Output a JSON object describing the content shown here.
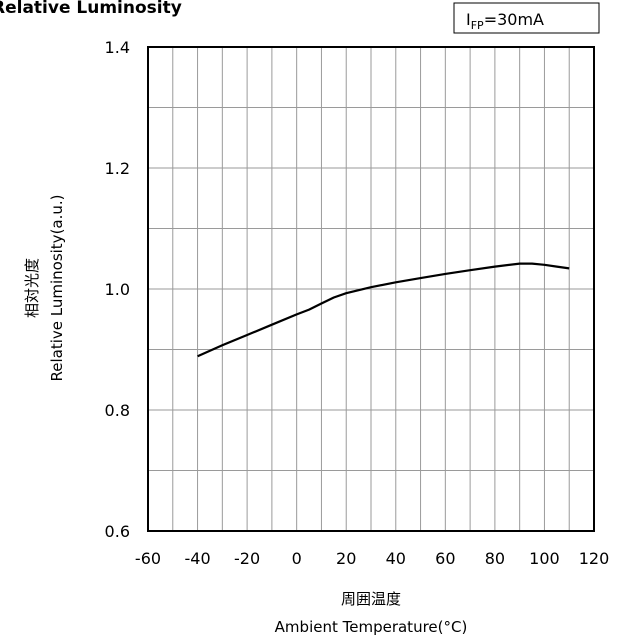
{
  "chart_data": {
    "type": "line",
    "title": "Relative Luminosity",
    "condition_label": {
      "main": "I",
      "subscript": "FP",
      "rest": "=30mA"
    },
    "xlabel_cn": "周囲温度",
    "xlabel": "Ambient Temperature(°C)",
    "ylabel_cn": "相対光度",
    "ylabel": "Relative Luminosity(a.u.)",
    "xlim": [
      -60,
      120
    ],
    "ylim": [
      0.6,
      1.4
    ],
    "x_ticks": [
      -60,
      -40,
      -20,
      0,
      20,
      40,
      60,
      80,
      100,
      120
    ],
    "y_ticks": [
      "0.6",
      "0.8",
      "1.0",
      "1.2",
      "1.4"
    ],
    "grid": true,
    "series": [
      {
        "x": [
          -40,
          -30,
          -20,
          -10,
          0,
          5,
          10,
          15,
          20,
          30,
          40,
          50,
          60,
          70,
          80,
          90,
          95,
          100,
          105,
          110
        ],
        "values": [
          0.889,
          0.907,
          0.924,
          0.941,
          0.958,
          0.966,
          0.976,
          0.986,
          0.993,
          1.003,
          1.011,
          1.018,
          1.025,
          1.031,
          1.037,
          1.042,
          1.042,
          1.04,
          1.037,
          1.034
        ]
      }
    ]
  }
}
